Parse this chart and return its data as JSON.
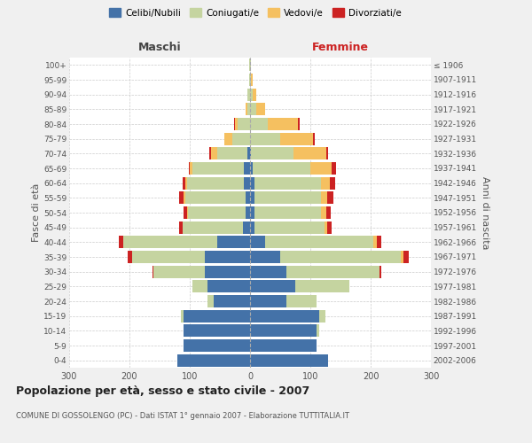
{
  "age_groups": [
    "0-4",
    "5-9",
    "10-14",
    "15-19",
    "20-24",
    "25-29",
    "30-34",
    "35-39",
    "40-44",
    "45-49",
    "50-54",
    "55-59",
    "60-64",
    "65-69",
    "70-74",
    "75-79",
    "80-84",
    "85-89",
    "90-94",
    "95-99",
    "100+"
  ],
  "anni_nascita": [
    "2002-2006",
    "1997-2001",
    "1992-1996",
    "1987-1991",
    "1982-1986",
    "1977-1981",
    "1972-1976",
    "1967-1971",
    "1962-1966",
    "1957-1961",
    "1952-1956",
    "1947-1951",
    "1942-1946",
    "1937-1941",
    "1932-1936",
    "1927-1931",
    "1922-1926",
    "1917-1921",
    "1912-1916",
    "1907-1911",
    "≤ 1906"
  ],
  "maschi": {
    "celibi": [
      120,
      110,
      110,
      110,
      60,
      70,
      75,
      75,
      55,
      12,
      8,
      8,
      10,
      10,
      5,
      0,
      0,
      0,
      0,
      0,
      0
    ],
    "coniugati": [
      0,
      0,
      0,
      5,
      10,
      25,
      85,
      120,
      155,
      100,
      95,
      100,
      95,
      85,
      50,
      30,
      20,
      5,
      5,
      2,
      2
    ],
    "vedovi": [
      0,
      0,
      0,
      0,
      0,
      0,
      0,
      0,
      0,
      0,
      2,
      2,
      2,
      5,
      10,
      12,
      5,
      2,
      0,
      0,
      0
    ],
    "divorziati": [
      0,
      0,
      0,
      0,
      0,
      0,
      2,
      8,
      8,
      5,
      5,
      8,
      5,
      2,
      2,
      0,
      2,
      0,
      0,
      0,
      0
    ]
  },
  "femmine": {
    "nubili": [
      130,
      110,
      110,
      115,
      60,
      75,
      60,
      50,
      25,
      8,
      8,
      8,
      8,
      5,
      2,
      0,
      0,
      0,
      0,
      0,
      0
    ],
    "coniugate": [
      0,
      0,
      5,
      10,
      50,
      90,
      155,
      200,
      180,
      115,
      110,
      110,
      110,
      95,
      70,
      50,
      30,
      10,
      5,
      2,
      2
    ],
    "vedove": [
      0,
      0,
      0,
      0,
      0,
      0,
      0,
      5,
      5,
      5,
      8,
      10,
      15,
      35,
      55,
      55,
      50,
      15,
      5,
      2,
      0
    ],
    "divorziate": [
      0,
      0,
      0,
      0,
      0,
      0,
      2,
      8,
      8,
      8,
      8,
      10,
      8,
      8,
      2,
      2,
      2,
      0,
      0,
      0,
      0
    ]
  },
  "colors": {
    "celibi": "#4472a8",
    "coniugati": "#c5d4a0",
    "vedovi": "#f5c060",
    "divorziati": "#cc2222"
  },
  "legend_labels": [
    "Celibi/Nubili",
    "Coniugati/e",
    "Vedovi/e",
    "Divorziati/e"
  ],
  "title": "Popolazione per età, sesso e stato civile - 2007",
  "subtitle": "COMUNE DI GOSSOLENGO (PC) - Dati ISTAT 1° gennaio 2007 - Elaborazione TUTTITALIA.IT",
  "ylabel_left": "Fasce di età",
  "ylabel_right": "Anni di nascita",
  "xlim": 300,
  "background_color": "#f0f0f0",
  "plot_bg": "#ffffff"
}
